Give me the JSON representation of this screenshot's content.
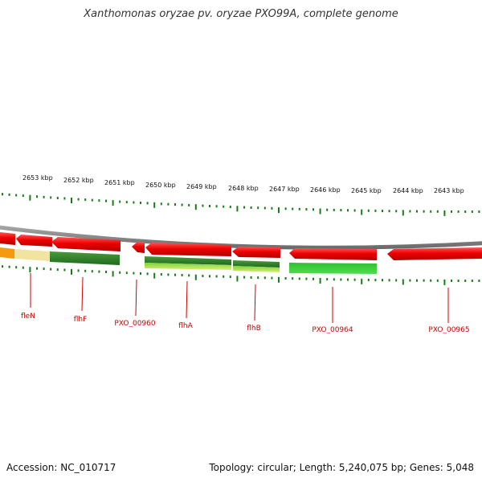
{
  "title": "Xanthomonas oryzae pv. oryzae PXO99A, complete genome",
  "footer": {
    "accession": "Accession: NC_010717",
    "topology": "Topology: circular; Length: 5,240,075 bp; Genes: 5,048"
  },
  "scale_labels": [
    "2653 kbp",
    "2652 kbp",
    "2651 kbp",
    "2650 kbp",
    "2649 kbp",
    "2648 kbp",
    "2647 kbp",
    "2646 kbp",
    "2645 kbp",
    "2644 kbp",
    "2643 kbp"
  ],
  "genes": [
    "fleN",
    "flhF",
    "PXO_00960",
    "flhA",
    "flhB",
    "PXO_00964",
    "PXO_00965"
  ],
  "colors": {
    "feature_arrow": "#ee0000",
    "label": "#cc0000",
    "tick": "#1a7a1a",
    "backbone": "#888888"
  }
}
